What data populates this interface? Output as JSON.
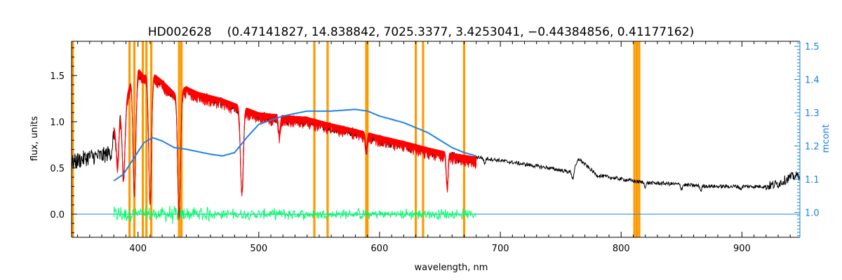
{
  "chart_data": {
    "type": "line",
    "title_id": "HD002628",
    "title_params": "(0.47141827, 14.838842, 7025.3377, 3.4253041, −0.44384856, 0.41177162)",
    "xlabel": "wavelength, nm",
    "ylabel": "flux, units",
    "y2label": "mcont",
    "xlim": [
      345,
      948
    ],
    "ylim": [
      -0.25,
      1.87
    ],
    "y2lim": [
      0.925,
      1.515
    ],
    "x_ticks": [
      400,
      500,
      600,
      700,
      800,
      900
    ],
    "x_tick_labels": [
      "400",
      "500",
      "600",
      "700",
      "800",
      "900"
    ],
    "y_ticks": [
      0.0,
      0.5,
      1.0,
      1.5
    ],
    "y_tick_labels": [
      "0.0",
      "0.5",
      "1.0",
      "1.5"
    ],
    "y2_ticks": [
      1.0,
      1.1,
      1.2,
      1.3,
      1.4,
      1.5
    ],
    "y2_tick_labels": [
      "1.0",
      "1.1",
      "1.2",
      "1.3",
      "1.4",
      "1.5"
    ],
    "colors": {
      "observed": "#000000",
      "model": "#ff0000",
      "residual": "#00ff66",
      "mcont": "#1e82e6",
      "mask": "#ff9900",
      "axis": "#000000",
      "axis_right": "#1e82e6"
    },
    "mask_lines": [
      346,
      393,
      397,
      404,
      407,
      411,
      434,
      436,
      546,
      557,
      589,
      590,
      630,
      636,
      670,
      811,
      813,
      815
    ],
    "series": [
      {
        "label": "observed",
        "x": [
          345,
          350,
          360,
          370,
          378,
          382,
          390,
          395,
          400,
          405,
          410,
          420,
          430,
          440,
          450,
          470,
          480,
          500,
          520,
          540,
          560,
          580,
          600,
          620,
          640,
          660,
          680,
          700,
          720,
          740,
          760,
          765,
          780,
          800,
          820,
          840,
          860,
          880,
          900,
          920,
          930,
          940,
          948
        ],
        "y": [
          0.55,
          0.58,
          0.62,
          0.63,
          0.67,
          1.1,
          1.25,
          1.5,
          1.58,
          1.5,
          1.55,
          1.45,
          1.32,
          1.38,
          1.32,
          1.25,
          1.2,
          1.1,
          1.07,
          1.05,
          0.98,
          0.92,
          0.85,
          0.79,
          0.72,
          0.66,
          0.62,
          0.58,
          0.54,
          0.5,
          0.45,
          0.6,
          0.42,
          0.38,
          0.34,
          0.33,
          0.31,
          0.3,
          0.3,
          0.3,
          0.33,
          0.4,
          0.42
        ]
      },
      {
        "label": "model",
        "x": [
          380,
          390,
          395,
          400,
          405,
          410,
          420,
          430,
          440,
          450,
          470,
          480,
          500,
          520,
          540,
          560,
          580,
          600,
          620,
          640,
          660,
          680
        ],
        "y": [
          0.95,
          1.24,
          1.5,
          1.58,
          1.5,
          1.55,
          1.45,
          1.32,
          1.38,
          1.32,
          1.25,
          1.2,
          1.1,
          1.07,
          1.05,
          0.98,
          0.92,
          0.85,
          0.79,
          0.72,
          0.66,
          0.62
        ]
      },
      {
        "label": "residual",
        "x": [
          380,
          680
        ],
        "y": [
          0.0,
          0.0
        ]
      },
      {
        "label": "mcont",
        "axis": "right",
        "x": [
          380,
          388,
          396,
          405,
          412,
          420,
          430,
          440,
          460,
          470,
          480,
          490,
          500,
          520,
          540,
          560,
          580,
          590,
          600,
          620,
          640,
          660,
          670,
          680
        ],
        "y": [
          1.095,
          1.115,
          1.16,
          1.21,
          1.225,
          1.215,
          1.195,
          1.19,
          1.175,
          1.17,
          1.18,
          1.225,
          1.265,
          1.29,
          1.305,
          1.305,
          1.31,
          1.305,
          1.29,
          1.27,
          1.24,
          1.195,
          1.18,
          1.17
        ]
      }
    ],
    "absorption_lines": [
      {
        "x": 383,
        "depth": 0.45
      },
      {
        "x": 388,
        "depth": 0.65
      },
      {
        "x": 397,
        "depth": 0.85
      },
      {
        "x": 410,
        "depth": 0.9
      },
      {
        "x": 434,
        "depth": 1.0
      },
      {
        "x": 486,
        "depth": 0.8
      },
      {
        "x": 517,
        "depth": 0.2
      },
      {
        "x": 589,
        "depth": 0.2
      },
      {
        "x": 656,
        "depth": 0.55
      },
      {
        "x": 687,
        "depth": 0.1
      },
      {
        "x": 760,
        "depth": 0.15
      },
      {
        "x": 820,
        "depth": 0.12
      },
      {
        "x": 850,
        "depth": 0.15
      },
      {
        "x": 866,
        "depth": 0.18
      },
      {
        "x": 899,
        "depth": 0.1
      }
    ]
  }
}
